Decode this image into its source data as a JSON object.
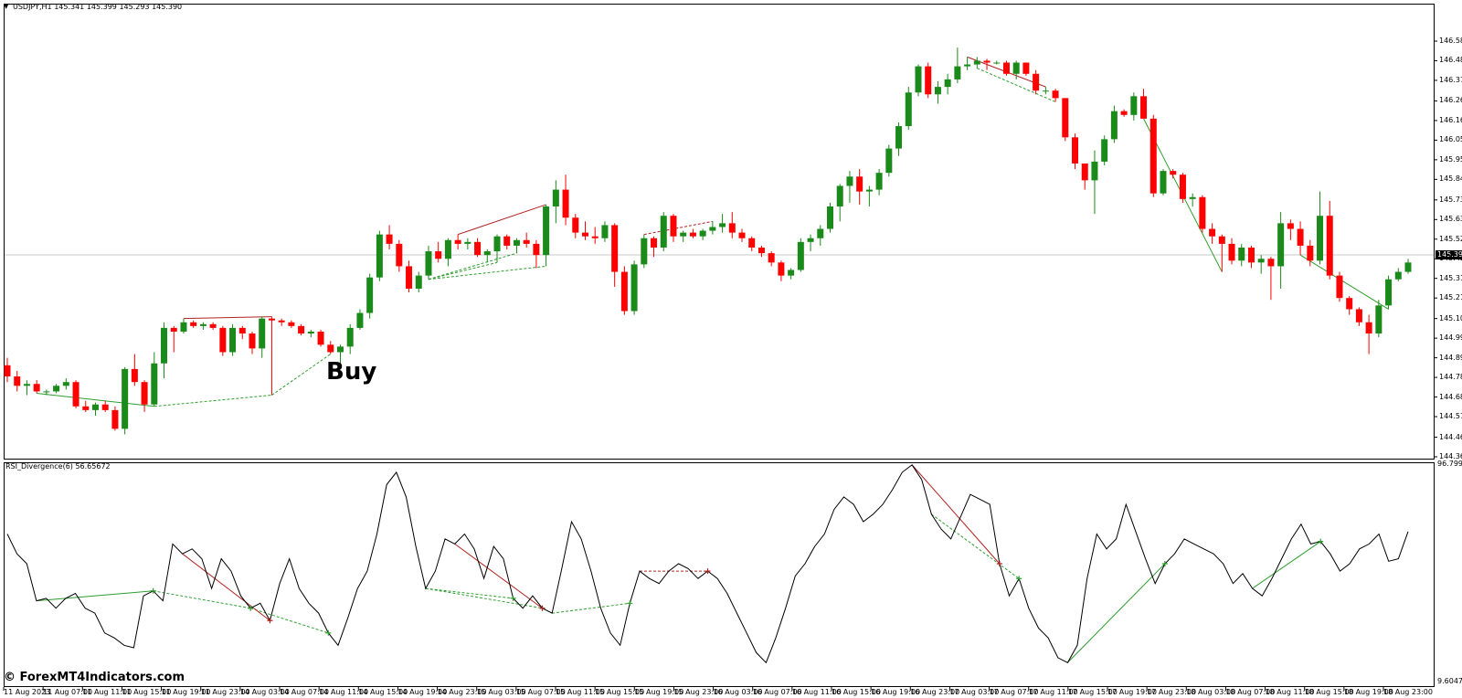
{
  "window": {
    "symbol_label": "USDJPY,H1",
    "ohlc_label": "145.341 145.399 145.293 145.390",
    "current_price": "145.390"
  },
  "indicator": {
    "label": "RSI_Divergence(6) 56.65672",
    "max_label": "96.7994",
    "min_label": "9.6047"
  },
  "annotation": {
    "buy_text": "Buy"
  },
  "watermark": {
    "text": "© ForexMT4Indicators.com"
  },
  "price_axis": [
    "146.585",
    "146.480",
    "146.375",
    "146.265",
    "146.160",
    "146.055",
    "145.950",
    "145.845",
    "145.735",
    "145.630",
    "145.525",
    "145.420",
    "145.315",
    "145.210",
    "145.100",
    "144.995",
    "144.890",
    "144.785",
    "144.680",
    "144.575",
    "144.465",
    "144.360"
  ],
  "time_axis": [
    "11 Aug 2023",
    "11 Aug 07:00",
    "11 Aug 11:00",
    "11 Aug 15:00",
    "11 Aug 19:00",
    "11 Aug 23:00",
    "14 Aug 03:00",
    "14 Aug 07:00",
    "14 Aug 11:00",
    "14 Aug 15:00",
    "14 Aug 19:00",
    "14 Aug 23:00",
    "15 Aug 03:00",
    "15 Aug 07:00",
    "15 Aug 11:00",
    "15 Aug 15:00",
    "15 Aug 19:00",
    "15 Aug 23:00",
    "16 Aug 03:00",
    "16 Aug 07:00",
    "16 Aug 11:00",
    "16 Aug 15:00",
    "16 Aug 19:00",
    "16 Aug 23:00",
    "17 Aug 03:00",
    "17 Aug 07:00",
    "17 Aug 11:00",
    "17 Aug 15:00",
    "17 Aug 19:00",
    "17 Aug 23:00",
    "18 Aug 03:00",
    "18 Aug 07:00",
    "18 Aug 11:00",
    "18 Aug 15:00",
    "18 Aug 19:00",
    "18 Aug 23:00"
  ],
  "colors": {
    "bull": "#1a8a1a",
    "bear": "#ff0000",
    "rsi_line": "#000000",
    "div_bull": "#2e9e2e",
    "div_bear": "#b22222"
  },
  "chart_data": {
    "type": "candlestick",
    "candles": [
      [
        144.85,
        144.89,
        144.76,
        144.79
      ],
      [
        144.79,
        144.82,
        144.71,
        144.74
      ],
      [
        144.74,
        144.77,
        144.69,
        144.75
      ],
      [
        144.75,
        144.77,
        144.7,
        144.71
      ],
      [
        144.71,
        144.72,
        144.69,
        144.71
      ],
      [
        144.71,
        144.75,
        144.7,
        144.74
      ],
      [
        144.74,
        144.78,
        144.72,
        144.76
      ],
      [
        144.76,
        144.77,
        144.62,
        144.63
      ],
      [
        144.63,
        144.66,
        144.6,
        144.61
      ],
      [
        144.61,
        144.65,
        144.58,
        144.64
      ],
      [
        144.64,
        144.66,
        144.6,
        144.61
      ],
      [
        144.61,
        144.63,
        144.5,
        144.51
      ],
      [
        144.51,
        144.84,
        144.48,
        144.83
      ],
      [
        144.83,
        144.91,
        144.74,
        144.76
      ],
      [
        144.76,
        144.77,
        144.6,
        144.64
      ],
      [
        144.64,
        144.92,
        144.63,
        144.86
      ],
      [
        144.86,
        145.08,
        144.78,
        145.05
      ],
      [
        145.05,
        145.06,
        144.92,
        145.03
      ],
      [
        145.03,
        145.1,
        145.02,
        145.08
      ],
      [
        145.08,
        145.09,
        145.05,
        145.06
      ],
      [
        145.06,
        145.08,
        145.04,
        145.07
      ],
      [
        145.07,
        145.08,
        145.04,
        145.05
      ],
      [
        145.05,
        145.06,
        144.9,
        144.92
      ],
      [
        144.92,
        145.07,
        144.9,
        145.05
      ],
      [
        145.05,
        145.06,
        144.99,
        145.02
      ],
      [
        145.02,
        145.03,
        144.91,
        144.94
      ],
      [
        144.94,
        145.11,
        144.89,
        145.1
      ],
      [
        145.1,
        145.11,
        144.69,
        145.09
      ],
      [
        145.09,
        145.1,
        145.06,
        145.08
      ],
      [
        145.08,
        145.09,
        145.05,
        145.06
      ],
      [
        145.06,
        145.07,
        145.01,
        145.02
      ],
      [
        145.02,
        145.04,
        145.0,
        145.03
      ],
      [
        145.03,
        145.04,
        144.95,
        144.96
      ],
      [
        144.96,
        144.98,
        144.91,
        144.92
      ],
      [
        144.92,
        144.96,
        144.85,
        144.95
      ],
      [
        144.95,
        145.07,
        144.91,
        145.05
      ],
      [
        145.05,
        145.15,
        145.04,
        145.13
      ],
      [
        145.13,
        145.34,
        145.1,
        145.32
      ],
      [
        145.32,
        145.57,
        145.3,
        145.55
      ],
      [
        145.55,
        145.6,
        145.47,
        145.5
      ],
      [
        145.5,
        145.52,
        145.35,
        145.38
      ],
      [
        145.38,
        145.41,
        145.24,
        145.26
      ],
      [
        145.26,
        145.35,
        145.24,
        145.33
      ],
      [
        145.33,
        145.49,
        145.31,
        145.46
      ],
      [
        145.46,
        145.51,
        145.4,
        145.42
      ],
      [
        145.42,
        145.53,
        145.38,
        145.52
      ],
      [
        145.52,
        145.55,
        145.47,
        145.5
      ],
      [
        145.5,
        145.53,
        145.47,
        145.51
      ],
      [
        145.51,
        145.53,
        145.43,
        145.44
      ],
      [
        145.44,
        145.47,
        145.4,
        145.46
      ],
      [
        145.46,
        145.55,
        145.4,
        145.54
      ],
      [
        145.54,
        145.55,
        145.47,
        145.49
      ],
      [
        145.49,
        145.53,
        145.45,
        145.52
      ],
      [
        145.52,
        145.56,
        145.48,
        145.5
      ],
      [
        145.5,
        145.52,
        145.37,
        145.44
      ],
      [
        145.44,
        145.71,
        145.38,
        145.7
      ],
      [
        145.7,
        145.84,
        145.61,
        145.79
      ],
      [
        145.79,
        145.87,
        145.6,
        145.64
      ],
      [
        145.64,
        145.66,
        145.53,
        145.56
      ],
      [
        145.56,
        145.62,
        145.52,
        145.54
      ],
      [
        145.54,
        145.59,
        145.5,
        145.53
      ],
      [
        145.53,
        145.62,
        145.51,
        145.6
      ],
      [
        145.6,
        145.61,
        145.27,
        145.35
      ],
      [
        145.35,
        145.38,
        145.12,
        145.14
      ],
      [
        145.14,
        145.41,
        145.12,
        145.39
      ],
      [
        145.39,
        145.55,
        145.37,
        145.53
      ],
      [
        145.53,
        145.54,
        145.43,
        145.48
      ],
      [
        145.48,
        145.67,
        145.46,
        145.65
      ],
      [
        145.65,
        145.66,
        145.51,
        145.54
      ],
      [
        145.54,
        145.57,
        145.51,
        145.56
      ],
      [
        145.56,
        145.58,
        145.53,
        145.54
      ],
      [
        145.54,
        145.58,
        145.52,
        145.57
      ],
      [
        145.57,
        145.62,
        145.55,
        145.59
      ],
      [
        145.59,
        145.66,
        145.56,
        145.61
      ],
      [
        145.61,
        145.67,
        145.53,
        145.56
      ],
      [
        145.56,
        145.58,
        145.51,
        145.53
      ],
      [
        145.53,
        145.54,
        145.46,
        145.48
      ],
      [
        145.48,
        145.49,
        145.43,
        145.45
      ],
      [
        145.45,
        145.46,
        145.38,
        145.4
      ],
      [
        145.4,
        145.41,
        145.3,
        145.33
      ],
      [
        145.33,
        145.37,
        145.31,
        145.36
      ],
      [
        145.36,
        145.53,
        145.35,
        145.51
      ],
      [
        145.51,
        145.55,
        145.46,
        145.53
      ],
      [
        145.53,
        145.6,
        145.49,
        145.58
      ],
      [
        145.58,
        145.72,
        145.56,
        145.7
      ],
      [
        145.7,
        145.82,
        145.62,
        145.81
      ],
      [
        145.81,
        145.89,
        145.72,
        145.86
      ],
      [
        145.86,
        145.9,
        145.71,
        145.78
      ],
      [
        145.78,
        145.81,
        145.7,
        145.79
      ],
      [
        145.79,
        145.9,
        145.76,
        145.88
      ],
      [
        145.88,
        146.03,
        145.86,
        146.01
      ],
      [
        146.01,
        146.15,
        145.97,
        146.13
      ],
      [
        146.13,
        146.34,
        146.11,
        146.31
      ],
      [
        146.31,
        146.46,
        146.29,
        146.45
      ],
      [
        146.45,
        146.47,
        146.28,
        146.3
      ],
      [
        146.3,
        146.37,
        146.25,
        146.34
      ],
      [
        146.34,
        146.41,
        146.3,
        146.38
      ],
      [
        146.38,
        146.55,
        146.36,
        146.45
      ],
      [
        146.45,
        146.5,
        146.43,
        146.46
      ],
      [
        146.46,
        146.5,
        146.44,
        146.48
      ],
      [
        146.48,
        146.49,
        146.43,
        146.47
      ],
      [
        146.47,
        146.48,
        146.46,
        146.47
      ],
      [
        146.47,
        146.48,
        146.4,
        146.41
      ],
      [
        146.41,
        146.48,
        146.38,
        146.47
      ],
      [
        146.47,
        146.47,
        146.4,
        146.41
      ],
      [
        146.41,
        146.43,
        146.3,
        146.32
      ],
      [
        146.32,
        146.34,
        146.3,
        146.32
      ],
      [
        146.32,
        146.33,
        146.26,
        146.28
      ],
      [
        146.28,
        146.28,
        146.05,
        146.07
      ],
      [
        146.07,
        146.09,
        145.9,
        145.93
      ],
      [
        145.93,
        145.93,
        145.79,
        145.84
      ],
      [
        145.84,
        146.0,
        145.66,
        145.94
      ],
      [
        145.94,
        146.08,
        145.92,
        146.06
      ],
      [
        146.06,
        146.24,
        146.04,
        146.21
      ],
      [
        146.21,
        146.22,
        146.18,
        146.19
      ],
      [
        146.19,
        146.31,
        146.16,
        146.29
      ],
      [
        146.29,
        146.33,
        146.17,
        146.17
      ],
      [
        146.17,
        146.19,
        145.75,
        145.77
      ],
      [
        145.77,
        145.9,
        145.76,
        145.89
      ],
      [
        145.89,
        145.9,
        145.85,
        145.87
      ],
      [
        145.87,
        145.88,
        145.72,
        145.74
      ],
      [
        145.74,
        145.77,
        145.7,
        145.75
      ],
      [
        145.75,
        145.76,
        145.56,
        145.58
      ],
      [
        145.58,
        145.61,
        145.5,
        145.54
      ],
      [
        145.54,
        145.55,
        145.35,
        145.5
      ],
      [
        145.5,
        145.53,
        145.39,
        145.41
      ],
      [
        145.41,
        145.5,
        145.38,
        145.48
      ],
      [
        145.48,
        145.49,
        145.37,
        145.4
      ],
      [
        145.4,
        145.44,
        145.34,
        145.42
      ],
      [
        145.42,
        145.43,
        145.2,
        145.38
      ],
      [
        145.38,
        145.67,
        145.26,
        145.61
      ],
      [
        145.61,
        145.63,
        145.52,
        145.58
      ],
      [
        145.58,
        145.62,
        145.44,
        145.49
      ],
      [
        145.49,
        145.52,
        145.38,
        145.41
      ],
      [
        145.41,
        145.78,
        145.39,
        145.65
      ],
      [
        145.65,
        145.73,
        145.31,
        145.33
      ],
      [
        145.33,
        145.35,
        145.19,
        145.21
      ],
      [
        145.21,
        145.22,
        145.12,
        145.15
      ],
      [
        145.15,
        145.16,
        145.06,
        145.08
      ],
      [
        145.08,
        145.12,
        144.91,
        145.02
      ],
      [
        145.02,
        145.2,
        145.0,
        145.17
      ],
      [
        145.17,
        145.33,
        145.15,
        145.31
      ],
      [
        145.31,
        145.37,
        145.3,
        145.35
      ],
      [
        145.35,
        145.42,
        145.34,
        145.4
      ]
    ],
    "rsi": [
      70,
      62,
      58,
      43,
      44,
      40,
      44,
      46,
      40,
      38,
      30,
      28,
      25,
      24,
      45,
      47,
      43,
      66,
      62,
      64,
      60,
      48,
      60,
      55,
      45,
      40,
      42,
      35,
      50,
      60,
      48,
      42,
      38,
      30,
      25,
      36,
      48,
      55,
      70,
      90,
      95,
      85,
      65,
      48,
      55,
      68,
      66,
      70,
      64,
      52,
      65,
      60,
      44,
      40,
      45,
      40,
      38,
      56,
      75,
      68,
      55,
      40,
      30,
      25,
      42,
      55,
      52,
      50,
      55,
      58,
      56,
      52,
      55,
      52,
      46,
      38,
      30,
      22,
      18,
      28,
      40,
      53,
      58,
      65,
      70,
      80,
      85,
      82,
      75,
      78,
      82,
      88,
      95,
      98,
      92,
      78,
      72,
      68,
      77,
      86,
      84,
      82,
      58,
      45,
      52,
      40,
      32,
      28,
      20,
      18,
      25,
      52,
      70,
      64,
      68,
      82,
      71,
      60,
      50,
      58,
      62,
      68,
      66,
      64,
      62,
      58,
      50,
      54,
      48,
      45,
      52,
      60,
      68,
      74,
      66,
      67,
      62,
      55,
      58,
      64,
      66,
      70,
      59,
      60,
      71
    ]
  }
}
